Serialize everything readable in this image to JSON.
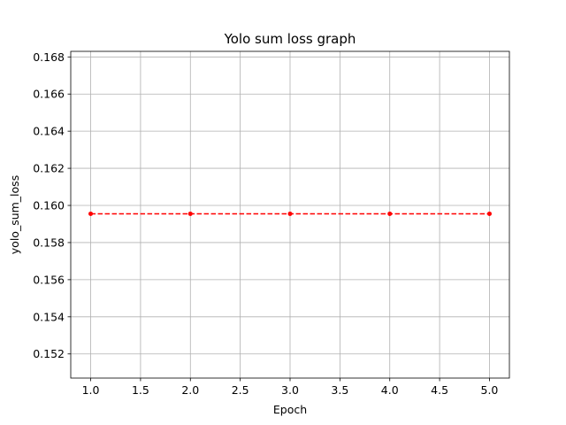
{
  "chart_data": {
    "type": "line",
    "title": "Yolo sum loss graph",
    "xlabel": "Epoch",
    "ylabel": "yolo_sum_loss",
    "xlim": [
      0.8,
      5.2
    ],
    "ylim": [
      0.1507,
      0.1683
    ],
    "xticks": [
      "1.0",
      "1.5",
      "2.0",
      "2.5",
      "3.0",
      "3.5",
      "4.0",
      "4.5",
      "5.0"
    ],
    "yticks": [
      "0.152",
      "0.154",
      "0.156",
      "0.158",
      "0.160",
      "0.162",
      "0.164",
      "0.166",
      "0.168"
    ],
    "grid": true,
    "series": [
      {
        "x": [
          1,
          2,
          3,
          4,
          5
        ],
        "y": [
          0.15955,
          0.15955,
          0.15955,
          0.15955,
          0.15955
        ],
        "color": "#ff0000",
        "linestyle": "dashed",
        "marker": "dot"
      }
    ]
  }
}
